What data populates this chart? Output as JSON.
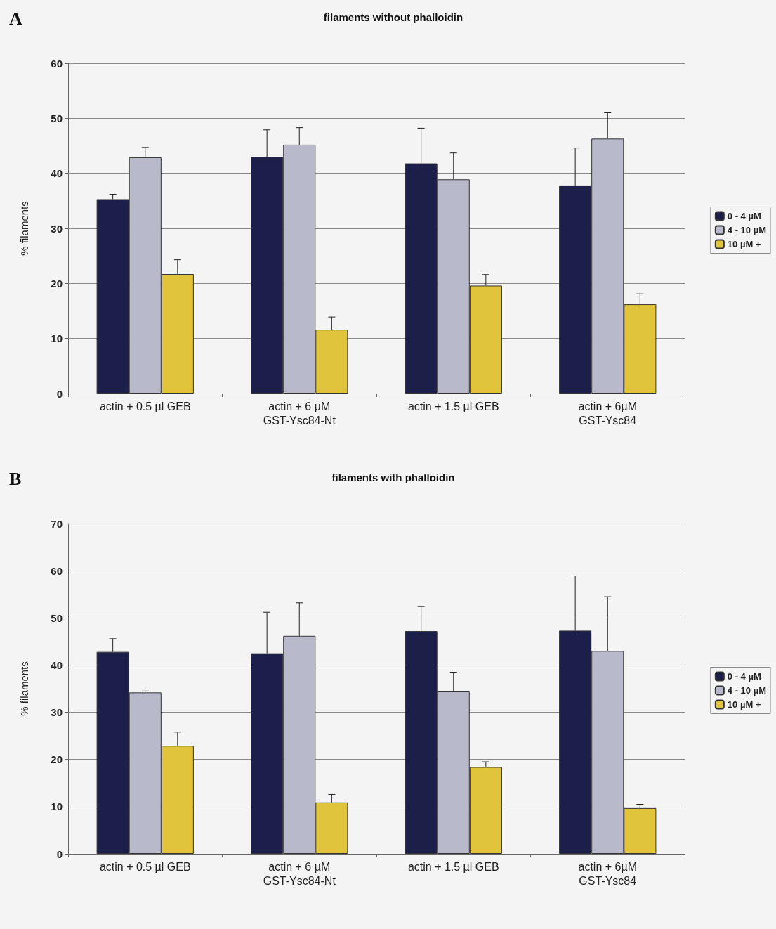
{
  "chart_data": [
    {
      "type": "bar",
      "title": "filaments without phalloidin",
      "ylabel": "% filaments",
      "annotations": [
        "A"
      ],
      "categories": [
        "actin + 0.5 µl GEB",
        "actin + 6 µM\nGST-Ysc84-Nt",
        "actin + 1.5 µl GEB",
        "actin + 6µM\nGST-Ysc84"
      ],
      "series": [
        {
          "name": "0 - 4 µM",
          "color": "#1c1f4a",
          "values": [
            35.3,
            43.0,
            41.8,
            37.8
          ],
          "errors": [
            [
              35.3,
              36.2
            ],
            [
              43.0,
              47.9
            ],
            [
              41.8,
              48.2
            ],
            [
              37.8,
              44.6
            ]
          ]
        },
        {
          "name": "4 - 10 µM",
          "color": "#b9b9cc",
          "values": [
            42.9,
            45.2,
            38.9,
            46.3
          ],
          "errors": [
            [
              42.9,
              44.7
            ],
            [
              45.2,
              48.3
            ],
            [
              38.9,
              43.7
            ],
            [
              46.3,
              51.0
            ]
          ]
        },
        {
          "name": "10 µM +",
          "color": "#e0c43c",
          "values": [
            21.7,
            11.6,
            19.6,
            16.2
          ],
          "errors": [
            [
              21.7,
              24.3
            ],
            [
              11.6,
              13.9
            ],
            [
              19.6,
              21.6
            ],
            [
              16.2,
              18.1
            ]
          ]
        }
      ],
      "ylim": [
        0,
        60
      ],
      "yticks": [
        0,
        10,
        20,
        30,
        40,
        50,
        60
      ],
      "grid": "y",
      "legend": "right"
    },
    {
      "type": "bar",
      "title": "filaments with phalloidin",
      "ylabel": "% filaments",
      "annotations": [
        "B"
      ],
      "categories": [
        "actin + 0.5 µl GEB",
        "actin + 6 µM\nGST-Ysc84-Nt",
        "actin + 1.5 µl GEB",
        "actin + 6µM\nGST-Ysc84"
      ],
      "series": [
        {
          "name": "0 - 4 µM",
          "color": "#1c1f4a",
          "values": [
            42.8,
            42.5,
            47.2,
            47.3
          ],
          "errors": [
            [
              42.8,
              45.6
            ],
            [
              42.5,
              51.2
            ],
            [
              47.2,
              52.4
            ],
            [
              47.3,
              58.9
            ]
          ]
        },
        {
          "name": "4 - 10 µM",
          "color": "#b9b9cc",
          "values": [
            34.2,
            46.2,
            34.4,
            43.0
          ],
          "errors": [
            [
              34.2,
              34.5
            ],
            [
              46.2,
              53.2
            ],
            [
              34.4,
              38.5
            ],
            [
              43.0,
              54.5
            ]
          ]
        },
        {
          "name": "10 µM +",
          "color": "#e0c43c",
          "values": [
            22.9,
            10.9,
            18.4,
            9.7
          ],
          "errors": [
            [
              22.9,
              25.8
            ],
            [
              10.9,
              12.6
            ],
            [
              18.4,
              19.5
            ],
            [
              9.7,
              10.5
            ]
          ]
        }
      ],
      "ylim": [
        0,
        70
      ],
      "yticks": [
        0,
        10,
        20,
        30,
        40,
        50,
        60,
        70
      ],
      "grid": "y",
      "legend": "right"
    }
  ]
}
